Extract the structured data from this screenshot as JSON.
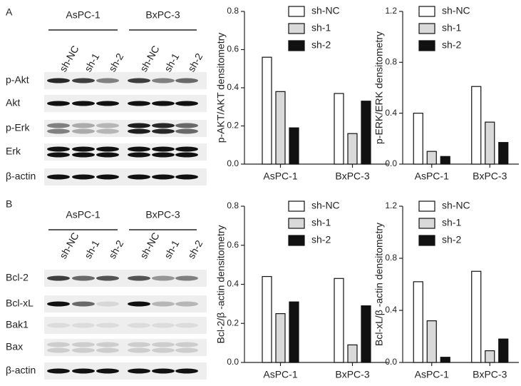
{
  "panels": [
    "A",
    "B"
  ],
  "blots": [
    {
      "groups": [
        "AsPC-1",
        "BxPC-3"
      ],
      "lanes": [
        "sh-NC",
        "sh-1",
        "sh-2",
        "sh-NC",
        "sh-1",
        "sh-2"
      ],
      "rows": [
        "p-Akt",
        "Akt",
        "p-Erk",
        "Erk",
        "β-actin"
      ]
    },
    {
      "groups": [
        "AsPC-1",
        "BxPC-3"
      ],
      "lanes": [
        "sh-NC",
        "sh-1",
        "sh-2",
        "sh-NC",
        "sh-1",
        "sh-2"
      ],
      "rows": [
        "Bcl-2",
        "Bcl-xL",
        "Bak1",
        "Bax",
        "β-actin"
      ]
    }
  ],
  "chart_data": [
    {
      "type": "bar",
      "y_label": "p-AKT/AKT densitometry",
      "categories": [
        "AsPC-1",
        "BxPC-3"
      ],
      "series": [
        {
          "name": "sh-NC",
          "color": "#ffffff",
          "values": [
            0.56,
            0.37
          ]
        },
        {
          "name": "sh-1",
          "color": "#d9d9d9",
          "values": [
            0.38,
            0.16
          ]
        },
        {
          "name": "sh-2",
          "color": "#111111",
          "values": [
            0.19,
            0.33
          ]
        }
      ],
      "ylim": [
        0,
        0.8
      ],
      "yticks": [
        {
          "value": 0,
          "label": "0.0"
        },
        0.2,
        0.4,
        0.6,
        0.8
      ],
      "legend": "upper right"
    },
    {
      "type": "bar",
      "y_label": "p-ERK/ERK densitometry",
      "categories": [
        "AsPC-1",
        "BxPC-3"
      ],
      "series": [
        {
          "name": "sh-NC",
          "color": "#ffffff",
          "values": [
            0.4,
            0.61
          ]
        },
        {
          "name": "sh-1",
          "color": "#d9d9d9",
          "values": [
            0.1,
            0.33
          ]
        },
        {
          "name": "sh-2",
          "color": "#111111",
          "values": [
            0.06,
            0.17
          ]
        }
      ],
      "ylim": [
        0,
        1.2
      ],
      "yticks": [
        {
          "value": 0,
          "label": "0.0"
        },
        0.4,
        0.8,
        1.2
      ],
      "legend": "upper right"
    },
    {
      "type": "bar",
      "y_label": "Bcl-2/β -actin densitometry",
      "categories": [
        "AsPC-1",
        "BxPC-3"
      ],
      "series": [
        {
          "name": "sh-NC",
          "color": "#ffffff",
          "values": [
            0.44,
            0.43
          ]
        },
        {
          "name": "sh-1",
          "color": "#d9d9d9",
          "values": [
            0.25,
            0.09
          ]
        },
        {
          "name": "sh-2",
          "color": "#111111",
          "values": [
            0.31,
            0.29
          ]
        }
      ],
      "ylim": [
        0,
        0.8
      ],
      "yticks": [
        {
          "value": 0,
          "label": "0.0"
        },
        0.2,
        0.4,
        0.6,
        0.8
      ],
      "legend": "upper right"
    },
    {
      "type": "bar",
      "y_label": "Bcl-xL/β -actin densitometry",
      "categories": [
        "AsPC-1",
        "BxPC-3"
      ],
      "series": [
        {
          "name": "sh-NC",
          "color": "#ffffff",
          "values": [
            0.62,
            0.7
          ]
        },
        {
          "name": "sh-1",
          "color": "#d9d9d9",
          "values": [
            0.32,
            0.09
          ]
        },
        {
          "name": "sh-2",
          "color": "#111111",
          "values": [
            0.04,
            0.18
          ]
        }
      ],
      "ylim": [
        0,
        1.2
      ],
      "yticks": [
        {
          "value": 0,
          "label": "0.0"
        },
        0.4,
        0.8,
        1.2
      ],
      "legend": "upper right"
    }
  ]
}
